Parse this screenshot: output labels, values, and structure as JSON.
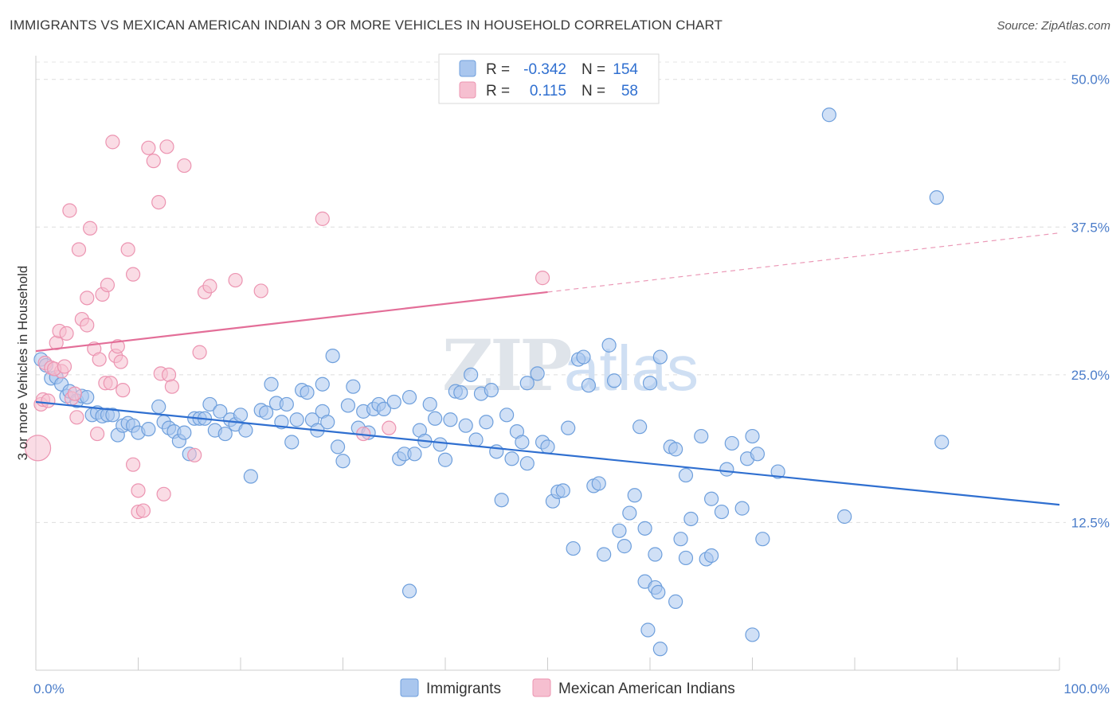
{
  "header": {
    "title": "IMMIGRANTS VS MEXICAN AMERICAN INDIAN 3 OR MORE VEHICLES IN HOUSEHOLD CORRELATION CHART",
    "source": "Source: ZipAtlas.com"
  },
  "watermark": {
    "zip": "ZIP",
    "atlas": "atlas"
  },
  "legend": {
    "immigrants": {
      "r_label": "R =",
      "r_value": "-0.342",
      "n_label": "N =",
      "n_value": "154"
    },
    "mexican": {
      "r_label": "R =",
      "r_value": "0.115",
      "n_label": "N =",
      "n_value": "58"
    }
  },
  "bottom_legend": {
    "immigrants": "Immigrants",
    "mexican": "Mexican American Indians"
  },
  "colors": {
    "blue_fill": "#a9c6ee",
    "blue_stroke": "#6e9fdc",
    "blue_line": "#2f6fd0",
    "pink_fill": "#f6bfd0",
    "pink_stroke": "#ec94b1",
    "pink_line": "#e36e98"
  },
  "chart_data": {
    "type": "scatter",
    "ylabel": "3 or more Vehicles in Household",
    "xlim": [
      0,
      100
    ],
    "ylim": [
      0,
      52
    ],
    "x_tick_labels": [
      "0.0%",
      "100.0%"
    ],
    "y_ticks": [
      12.5,
      25.0,
      37.5,
      50.0
    ],
    "y_tick_labels": [
      "12.5%",
      "25.0%",
      "37.5%",
      "50.0%"
    ],
    "grid": true,
    "series": [
      {
        "name": "Immigrants",
        "trend": {
          "x": [
            0,
            100
          ],
          "y": [
            22.7,
            14.0
          ],
          "dashed_from": null
        },
        "points": [
          [
            0.5,
            26.3
          ],
          [
            1,
            25.8
          ],
          [
            1.5,
            24.7
          ],
          [
            2,
            24.8
          ],
          [
            2.5,
            24.2
          ],
          [
            3,
            23.2
          ],
          [
            3.3,
            23.6
          ],
          [
            4,
            22.8
          ],
          [
            4.5,
            23.2
          ],
          [
            5,
            23.1
          ],
          [
            5.5,
            21.6
          ],
          [
            6,
            21.8
          ],
          [
            6.5,
            21.5
          ],
          [
            7,
            21.6
          ],
          [
            7.5,
            21.6
          ],
          [
            8,
            19.9
          ],
          [
            8.5,
            20.7
          ],
          [
            9,
            20.9
          ],
          [
            9.5,
            20.7
          ],
          [
            10,
            20.1
          ],
          [
            11,
            20.4
          ],
          [
            12,
            22.3
          ],
          [
            12.5,
            21.0
          ],
          [
            13,
            20.5
          ],
          [
            13.5,
            20.2
          ],
          [
            14,
            19.4
          ],
          [
            14.5,
            20.1
          ],
          [
            15,
            18.3
          ],
          [
            15.5,
            21.3
          ],
          [
            16,
            21.3
          ],
          [
            16.5,
            21.3
          ],
          [
            17,
            22.5
          ],
          [
            17.5,
            20.3
          ],
          [
            18,
            21.9
          ],
          [
            18.5,
            20.0
          ],
          [
            19,
            21.2
          ],
          [
            19.5,
            20.8
          ],
          [
            20,
            21.6
          ],
          [
            20.5,
            20.3
          ],
          [
            21,
            16.4
          ],
          [
            22,
            22.0
          ],
          [
            22.5,
            21.8
          ],
          [
            23,
            24.2
          ],
          [
            23.5,
            22.6
          ],
          [
            24,
            21.0
          ],
          [
            24.5,
            22.5
          ],
          [
            25,
            19.3
          ],
          [
            25.5,
            21.2
          ],
          [
            26,
            23.7
          ],
          [
            26.5,
            23.5
          ],
          [
            27,
            21.2
          ],
          [
            27.5,
            20.3
          ],
          [
            28,
            21.9
          ],
          [
            28.5,
            21.0
          ],
          [
            29,
            26.6
          ],
          [
            29.5,
            18.9
          ],
          [
            30,
            17.7
          ],
          [
            30.5,
            22.4
          ],
          [
            31,
            24.0
          ],
          [
            31.5,
            20.5
          ],
          [
            32,
            21.9
          ],
          [
            32.5,
            20.1
          ],
          [
            33,
            22.1
          ],
          [
            33.5,
            22.5
          ],
          [
            34,
            22.1
          ],
          [
            35,
            22.7
          ],
          [
            35.5,
            17.9
          ],
          [
            36,
            18.3
          ],
          [
            36.5,
            23.1
          ],
          [
            37,
            18.3
          ],
          [
            37.5,
            20.3
          ],
          [
            38,
            19.4
          ],
          [
            38.5,
            22.5
          ],
          [
            39,
            21.3
          ],
          [
            39.5,
            19.1
          ],
          [
            40,
            17.8
          ],
          [
            40.5,
            21.2
          ],
          [
            41,
            23.6
          ],
          [
            41.5,
            23.5
          ],
          [
            42,
            20.7
          ],
          [
            42.5,
            25.0
          ],
          [
            43,
            19.5
          ],
          [
            43.5,
            23.4
          ],
          [
            44,
            21.0
          ],
          [
            44.5,
            23.7
          ],
          [
            45,
            18.5
          ],
          [
            45.5,
            14.4
          ],
          [
            46,
            21.6
          ],
          [
            46.5,
            17.9
          ],
          [
            47,
            20.2
          ],
          [
            47.5,
            19.3
          ],
          [
            48,
            17.5
          ],
          [
            49,
            25.1
          ],
          [
            49.5,
            19.3
          ],
          [
            50,
            18.9
          ],
          [
            50.5,
            14.3
          ],
          [
            51,
            15.1
          ],
          [
            51.5,
            15.2
          ],
          [
            52,
            20.5
          ],
          [
            53,
            26.3
          ],
          [
            53.5,
            26.5
          ],
          [
            54,
            24.1
          ],
          [
            54.5,
            15.6
          ],
          [
            55,
            15.8
          ],
          [
            56,
            27.5
          ],
          [
            56.5,
            24.5
          ],
          [
            57,
            11.8
          ],
          [
            58,
            13.3
          ],
          [
            58.5,
            14.8
          ],
          [
            59,
            20.6
          ],
          [
            59.5,
            12.0
          ],
          [
            60,
            24.3
          ],
          [
            61,
            26.5
          ],
          [
            62,
            18.9
          ],
          [
            62.5,
            18.7
          ],
          [
            63,
            11.1
          ],
          [
            63.5,
            16.5
          ],
          [
            64,
            12.8
          ],
          [
            65,
            19.8
          ],
          [
            66,
            14.5
          ],
          [
            67,
            13.4
          ],
          [
            67.5,
            17.0
          ],
          [
            68,
            19.2
          ],
          [
            69,
            13.7
          ],
          [
            69.5,
            17.9
          ],
          [
            70,
            19.8
          ],
          [
            70.5,
            18.3
          ],
          [
            71,
            11.1
          ],
          [
            72.5,
            16.8
          ],
          [
            77.5,
            47.0
          ],
          [
            79,
            13.0
          ],
          [
            88,
            40.0
          ],
          [
            88.5,
            19.3
          ],
          [
            57.5,
            10.5
          ],
          [
            55.5,
            9.8
          ],
          [
            60.5,
            9.8
          ],
          [
            63.5,
            9.5
          ],
          [
            65.5,
            9.4
          ],
          [
            66,
            9.7
          ],
          [
            59.5,
            7.5
          ],
          [
            60.5,
            7.0
          ],
          [
            60.8,
            6.6
          ],
          [
            62.5,
            5.8
          ],
          [
            59.8,
            3.4
          ],
          [
            61,
            1.8
          ],
          [
            70,
            3.0
          ],
          [
            36.5,
            6.7
          ],
          [
            52.5,
            10.3
          ],
          [
            28,
            24.2
          ],
          [
            48,
            24.3
          ]
        ]
      },
      {
        "name": "Mexican American Indians",
        "trend": {
          "x": [
            0,
            50,
            100
          ],
          "y": [
            27.0,
            32.0,
            37.0
          ],
          "dashed_from": 50
        },
        "points": [
          [
            0.2,
            18.8
          ],
          [
            0.5,
            22.5
          ],
          [
            0.7,
            22.9
          ],
          [
            0.9,
            26.0
          ],
          [
            1.5,
            25.6
          ],
          [
            2,
            27.7
          ],
          [
            2.3,
            28.7
          ],
          [
            2.5,
            25.3
          ],
          [
            3,
            28.5
          ],
          [
            3.3,
            38.9
          ],
          [
            3.5,
            23.0
          ],
          [
            4,
            21.4
          ],
          [
            4.2,
            35.6
          ],
          [
            4.5,
            29.7
          ],
          [
            5,
            29.2
          ],
          [
            5,
            31.5
          ],
          [
            5.3,
            37.4
          ],
          [
            5.7,
            27.2
          ],
          [
            6,
            20.0
          ],
          [
            6.2,
            26.3
          ],
          [
            6.5,
            31.8
          ],
          [
            6.8,
            24.3
          ],
          [
            7,
            32.6
          ],
          [
            7.3,
            24.3
          ],
          [
            7.5,
            44.7
          ],
          [
            7.8,
            26.6
          ],
          [
            8,
            27.4
          ],
          [
            8.3,
            26.1
          ],
          [
            8.5,
            23.7
          ],
          [
            9,
            35.6
          ],
          [
            9.5,
            33.5
          ],
          [
            9.5,
            17.4
          ],
          [
            10,
            15.2
          ],
          [
            10,
            13.4
          ],
          [
            10.5,
            13.5
          ],
          [
            11,
            44.2
          ],
          [
            11.5,
            43.1
          ],
          [
            12,
            39.6
          ],
          [
            12.2,
            25.1
          ],
          [
            12.5,
            14.9
          ],
          [
            12.8,
            44.3
          ],
          [
            13,
            25.0
          ],
          [
            13.3,
            24.0
          ],
          [
            14.5,
            42.7
          ],
          [
            15.5,
            18.2
          ],
          [
            16,
            26.9
          ],
          [
            16.5,
            32.0
          ],
          [
            17,
            32.5
          ],
          [
            19.5,
            33.0
          ],
          [
            22,
            32.1
          ],
          [
            28,
            38.2
          ],
          [
            32,
            20.0
          ],
          [
            34.5,
            20.5
          ],
          [
            49.5,
            33.2
          ],
          [
            1.8,
            25.5
          ],
          [
            2.8,
            25.7
          ],
          [
            3.8,
            23.4
          ],
          [
            1.2,
            22.8
          ]
        ]
      }
    ]
  }
}
